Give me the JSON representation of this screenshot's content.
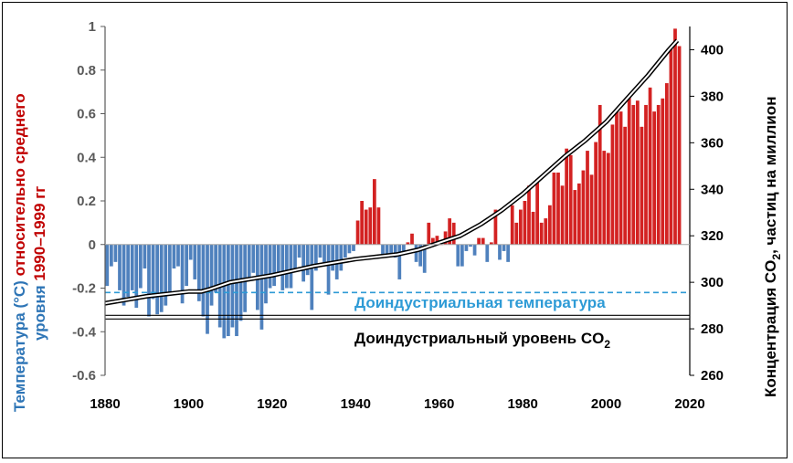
{
  "chart_data": {
    "type": "bar+line",
    "x_axis": {
      "range": [
        1880,
        2020
      ],
      "ticks": [
        "1880",
        "1900",
        "1920",
        "1940",
        "1960",
        "1980",
        "2000",
        "2020"
      ]
    },
    "y_left": {
      "range": [
        -0.6,
        1.0
      ],
      "ticks": [
        "-0.6",
        "-0.4",
        "-0.2",
        "0",
        "0.2",
        "0.4",
        "0.6",
        "0.8",
        "1"
      ],
      "label_part1": "Температура (°C) ",
      "label_part2": "относительно среднего",
      "label_line2a": "уровня ",
      "label_line2b": "1990–1999 гг",
      "label_color_blue": "#2e75b6",
      "label_color_red": "#c00000"
    },
    "y_right": {
      "range": [
        260,
        410
      ],
      "ticks": [
        "260",
        "280",
        "300",
        "320",
        "340",
        "360",
        "380",
        "400"
      ],
      "label_pre": "Концентрация CO",
      "label_sub": "2",
      "label_post": ", частиц на миллион"
    },
    "series": [
      {
        "kind": "bar",
        "x": [
          1880,
          1881,
          1882,
          1883,
          1884,
          1885,
          1886,
          1887,
          1888,
          1889,
          1890,
          1891,
          1892,
          1893,
          1894,
          1895,
          1896,
          1897,
          1898,
          1899,
          1900,
          1901,
          1902,
          1903,
          1904,
          1905,
          1906,
          1907,
          1908,
          1909,
          1910,
          1911,
          1912,
          1913,
          1914,
          1915,
          1916,
          1917,
          1918,
          1919,
          1920,
          1921,
          1922,
          1923,
          1924,
          1925,
          1926,
          1927,
          1928,
          1929,
          1930,
          1931,
          1932,
          1933,
          1934,
          1935,
          1936,
          1937,
          1938,
          1939,
          1940,
          1941,
          1942,
          1943,
          1944,
          1945,
          1946,
          1947,
          1948,
          1949,
          1950,
          1951,
          1952,
          1953,
          1954,
          1955,
          1956,
          1957,
          1958,
          1959,
          1960,
          1961,
          1962,
          1963,
          1964,
          1965,
          1966,
          1967,
          1968,
          1969,
          1970,
          1971,
          1972,
          1973,
          1974,
          1975,
          1976,
          1977,
          1978,
          1979,
          1980,
          1981,
          1982,
          1983,
          1984,
          1985,
          1986,
          1987,
          1988,
          1989,
          1990,
          1991,
          1992,
          1993,
          1994,
          1995,
          1996,
          1997,
          1998,
          1999,
          2000,
          2001,
          2002,
          2003,
          2004,
          2005,
          2006,
          2007,
          2008,
          2009,
          2010,
          2011,
          2012,
          2013,
          2014,
          2015,
          2016,
          2017
        ],
        "values": [
          -0.19,
          -0.1,
          -0.08,
          -0.21,
          -0.28,
          -0.24,
          -0.21,
          -0.29,
          -0.2,
          -0.11,
          -0.33,
          -0.25,
          -0.32,
          -0.31,
          -0.28,
          -0.22,
          -0.11,
          -0.1,
          -0.27,
          -0.19,
          -0.07,
          -0.16,
          -0.26,
          -0.33,
          -0.41,
          -0.28,
          -0.22,
          -0.38,
          -0.43,
          -0.42,
          -0.38,
          -0.42,
          -0.35,
          -0.31,
          -0.16,
          -0.13,
          -0.3,
          -0.39,
          -0.27,
          -0.2,
          -0.19,
          -0.13,
          -0.21,
          -0.2,
          -0.2,
          -0.12,
          -0.06,
          -0.17,
          -0.14,
          -0.3,
          -0.12,
          -0.06,
          -0.09,
          -0.23,
          -0.12,
          -0.16,
          -0.12,
          -0.06,
          -0.04,
          -0.03,
          0.11,
          0.2,
          0.16,
          0.17,
          0.3,
          0.17,
          -0.05,
          -0.05,
          -0.05,
          -0.06,
          -0.16,
          -0.03,
          0.01,
          0.05,
          -0.08,
          -0.1,
          -0.13,
          0.1,
          0.03,
          0.04,
          0.0,
          0.06,
          0.12,
          0.1,
          -0.1,
          -0.1,
          -0.03,
          -0.01,
          -0.05,
          0.03,
          0.03,
          -0.08,
          0.01,
          0.16,
          -0.07,
          -0.03,
          -0.08,
          0.18,
          0.1,
          0.16,
          0.2,
          0.27,
          0.15,
          0.3,
          0.1,
          0.12,
          0.18,
          0.33,
          0.33,
          0.27,
          0.44,
          0.41,
          0.25,
          0.28,
          0.34,
          0.43,
          0.32,
          0.47,
          0.64,
          0.43,
          0.42,
          0.55,
          0.62,
          0.61,
          0.54,
          0.68,
          0.64,
          0.66,
          0.54,
          0.64,
          0.72,
          0.61,
          0.64,
          0.67,
          0.74,
          0.9,
          0.99,
          0.91
        ],
        "color_positive": "#d32222",
        "color_negative": "#4f81bd"
      },
      {
        "kind": "line",
        "axis": "right",
        "x": [
          1880,
          1890,
          1900,
          1903,
          1905,
          1910,
          1920,
          1930,
          1940,
          1950,
          1955,
          1960,
          1965,
          1970,
          1975,
          1980,
          1985,
          1990,
          1995,
          2000,
          2005,
          2010,
          2015,
          2017
        ],
        "values": [
          291,
          294,
          296,
          296,
          297,
          300,
          303,
          307,
          310,
          312,
          314,
          317,
          320,
          325,
          331,
          338,
          346,
          354,
          361,
          369,
          379,
          389,
          400,
          404
        ],
        "style": "double-line"
      }
    ],
    "reference_lines": [
      {
        "label": "Доиндустриальная температура",
        "axis": "left",
        "value": -0.22,
        "style": "dashed",
        "color": "#2e9bd6"
      },
      {
        "label_pre": "Доиндустриальный уровень CO",
        "label_sub": "2",
        "axis": "right",
        "value": 285,
        "style": "double",
        "color": "#000000"
      }
    ]
  }
}
